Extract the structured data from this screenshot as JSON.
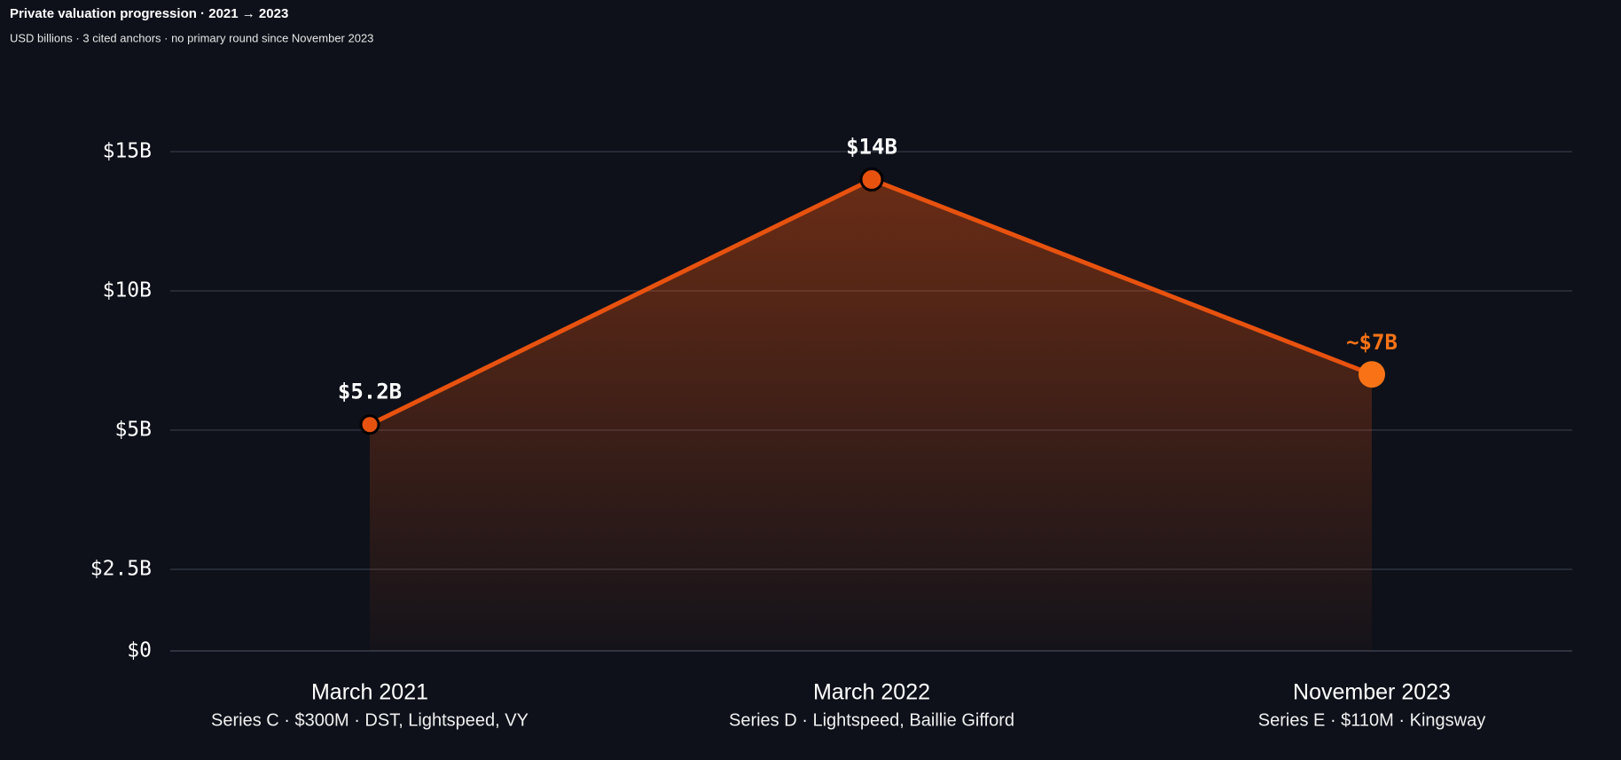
{
  "chart_data": {
    "type": "line",
    "title": "Private valuation progression · 2021 → 2023",
    "subtitle": "USD billions · 3 cited anchors · no primary round since November 2023",
    "categories": [
      "March 2021",
      "March 2022",
      "November 2023"
    ],
    "category_notes": [
      "Series C · $300M · DST, Lightspeed, VY",
      "Series D · Lightspeed, Baillie Gifford",
      "Series E · $110M · Kingsway"
    ],
    "values": [
      5.2,
      14,
      7
    ],
    "value_labels": [
      "$5.2B",
      "$14B",
      "~$7B"
    ],
    "color": "#e8520f",
    "point_colors": [
      "#e8520f",
      "#e8520f",
      "#f97316"
    ],
    "ylim": [
      0,
      15
    ],
    "yticks": [
      {
        "value": 0,
        "label": "$0"
      },
      {
        "value": 2.5,
        "label": "$2.5B"
      },
      {
        "value": 5,
        "label": "$5B"
      },
      {
        "value": 10,
        "label": "$10B"
      },
      {
        "value": 15,
        "label": "$15B"
      }
    ],
    "grid": true
  }
}
